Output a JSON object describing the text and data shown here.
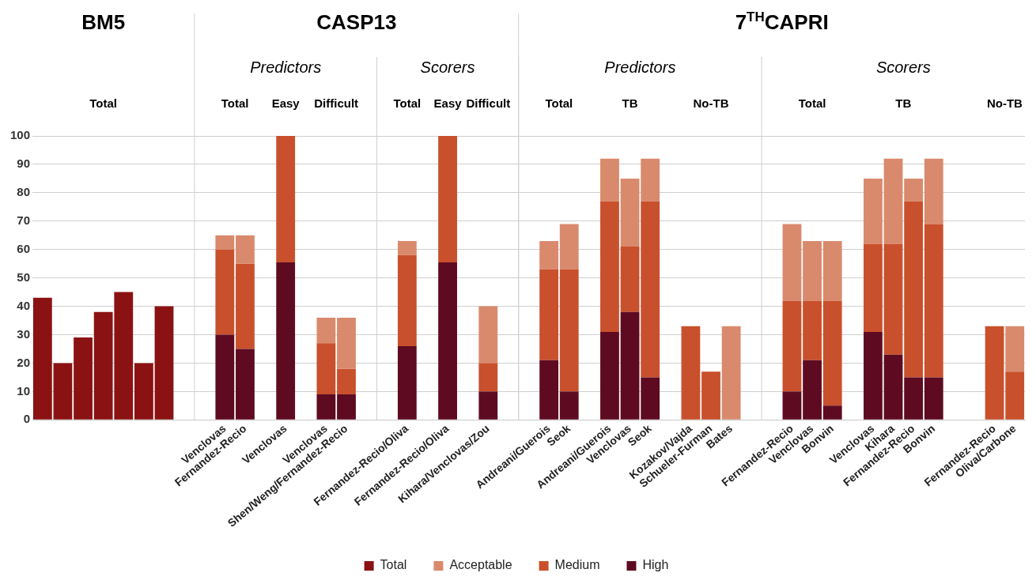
{
  "chart_data": {
    "type": "bar",
    "stacked": true,
    "categories": [
      null,
      null,
      null,
      null,
      null,
      null,
      null,
      null,
      null,
      "Venclovas",
      "Fernandez-Recio",
      null,
      "Venclovas",
      null,
      "Venclovas",
      "Shen/Weng/Fernandez-Recio",
      null,
      null,
      "Fernandez-Recio/Oliva",
      null,
      "Fernandez-Recio/Oliva",
      null,
      "Kihara/Venclovas/Zou",
      null,
      null,
      "Andreani/Guerois",
      "Seok",
      null,
      "Andreani/Guerois",
      "Venclovas",
      "Seok",
      null,
      "Kozakov/Vajda",
      "Schueler-Furman",
      "Bates",
      null,
      null,
      "Fernandez-Recio",
      "Venclovas",
      "Bonvin",
      null,
      "Venclovas",
      "Kihara",
      "Fernandez-Recio",
      "Bonvin",
      null,
      null,
      "Fernandez-Recio",
      "Oliva/Carbone"
    ],
    "series": [
      {
        "name": "Total",
        "color": "#8b1212",
        "values": [
          43,
          20,
          29,
          38,
          45,
          20,
          40,
          null,
          null,
          null,
          null,
          null,
          null,
          null,
          null,
          null,
          null,
          null,
          null,
          null,
          null,
          null,
          null,
          null,
          null,
          null,
          null,
          null,
          null,
          null,
          null,
          null,
          null,
          null,
          null,
          null,
          null,
          null,
          null,
          null,
          null,
          null,
          null,
          null,
          null,
          null,
          null,
          null,
          null
        ]
      },
      {
        "name": "High",
        "color": "#5e0b22",
        "values": [
          null,
          null,
          null,
          null,
          null,
          null,
          null,
          null,
          null,
          30,
          25,
          null,
          55.5,
          null,
          9,
          9,
          null,
          null,
          26,
          null,
          55.5,
          null,
          10,
          null,
          null,
          21,
          10,
          null,
          31,
          38,
          15,
          null,
          null,
          null,
          null,
          null,
          null,
          10,
          21,
          5,
          null,
          31,
          23,
          15,
          15,
          null,
          null,
          null,
          null
        ]
      },
      {
        "name": "Medium",
        "color": "#c9502c",
        "values": [
          null,
          null,
          null,
          null,
          null,
          null,
          null,
          null,
          null,
          30,
          30,
          null,
          44.5,
          null,
          18,
          9,
          null,
          null,
          32,
          null,
          44.5,
          null,
          10,
          null,
          null,
          32,
          43,
          null,
          46,
          23,
          62,
          null,
          33,
          17,
          null,
          null,
          null,
          32,
          21,
          37,
          null,
          31,
          39,
          62,
          54,
          null,
          null,
          33,
          17
        ]
      },
      {
        "name": "Acceptable",
        "color": "#d98a6c",
        "values": [
          null,
          null,
          null,
          null,
          null,
          null,
          null,
          null,
          null,
          5,
          10,
          null,
          null,
          null,
          9,
          18,
          null,
          null,
          5,
          null,
          null,
          null,
          20,
          null,
          null,
          10,
          16,
          null,
          15,
          24,
          15,
          null,
          null,
          null,
          33,
          null,
          null,
          27,
          21,
          21,
          null,
          23,
          30,
          8,
          23,
          null,
          null,
          null,
          16
        ]
      }
    ],
    "ylim": [
      0,
      100
    ],
    "yticks": [
      0,
      10,
      20,
      30,
      40,
      50,
      60,
      70,
      80,
      90,
      100
    ],
    "grid": "y",
    "legend": "bottom",
    "annotations": [
      "BM5",
      "CASP13",
      "7$^{TH}$CAPRI",
      "Predictors",
      "Scorers",
      "Predictors",
      "Scorers",
      "Total",
      "Total",
      "Easy",
      "Difficult",
      "Total",
      "Easy",
      "Difficult",
      "Total",
      "TB",
      "No-TB",
      "Total",
      "TB",
      "No-TB"
    ]
  }
}
